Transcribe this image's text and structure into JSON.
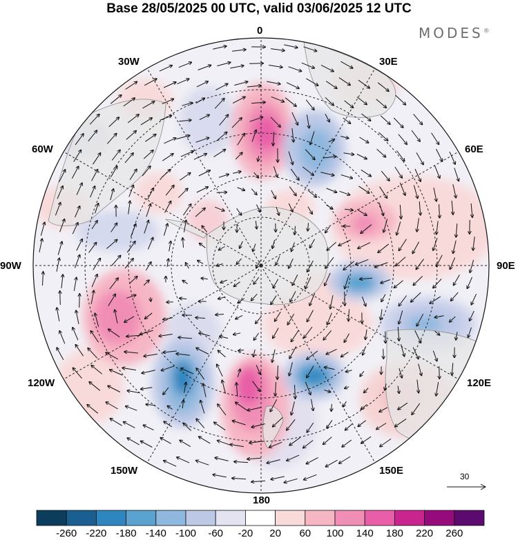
{
  "title": "Base 28/05/2025 00 UTC, valid 03/06/2025 12 UTC",
  "brand": {
    "name": "MODES",
    "mark": "®"
  },
  "longitude_labels": {
    "lon_0": "0",
    "lon_30e": "30E",
    "lon_60e": "60E",
    "lon_90e": "90E",
    "lon_120e": "120E",
    "lon_150e": "150E",
    "lon_180": "180",
    "lon_150w": "150W",
    "lon_120w": "120W",
    "lon_90w": "90W",
    "lon_60w": "60W",
    "lon_30w": "30W"
  },
  "vector_reference": {
    "value": "30"
  },
  "colorbar": {
    "colors": [
      "#0d3d5c",
      "#1a5f8f",
      "#2f86bf",
      "#5aa3d0",
      "#8fb8de",
      "#bcc8e6",
      "#e4e3f1",
      "#ffffff",
      "#f9dada",
      "#f6b6c4",
      "#f18eb6",
      "#e85ea8",
      "#c9258e",
      "#960b7c",
      "#5b0a6e"
    ],
    "labels": [
      "-260",
      "-220",
      "-180",
      "-140",
      "-100",
      "-60",
      "-20",
      "20",
      "60",
      "100",
      "140",
      "180",
      "220",
      "260"
    ]
  },
  "colors": {
    "land": "#e9e9e9",
    "coast": "#8a8a8a",
    "grid": "#222222",
    "arrow": "#111111"
  }
}
